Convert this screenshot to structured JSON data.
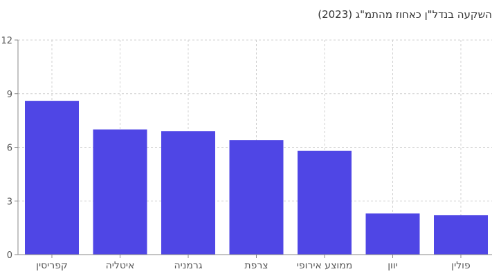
{
  "chart_data": {
    "type": "bar",
    "title": "השקעה בנדל\"ן כאחוז מהתמ\"ג (2023)",
    "categories": [
      "קפריסין",
      "איטליה",
      "גרמניה",
      "צרפת",
      "ממוצע אירופי",
      "יוון",
      "פולין"
    ],
    "values": [
      8.6,
      7.0,
      6.9,
      6.4,
      5.8,
      2.3,
      2.2
    ],
    "xlabel": "",
    "ylabel": "",
    "ylim": [
      0,
      12
    ],
    "yticks": [
      0,
      3,
      6,
      9,
      12
    ],
    "grid": true,
    "bar_color": "#4F46E5",
    "grid_color": "#d0d0d0",
    "axis_color": "#888888"
  }
}
